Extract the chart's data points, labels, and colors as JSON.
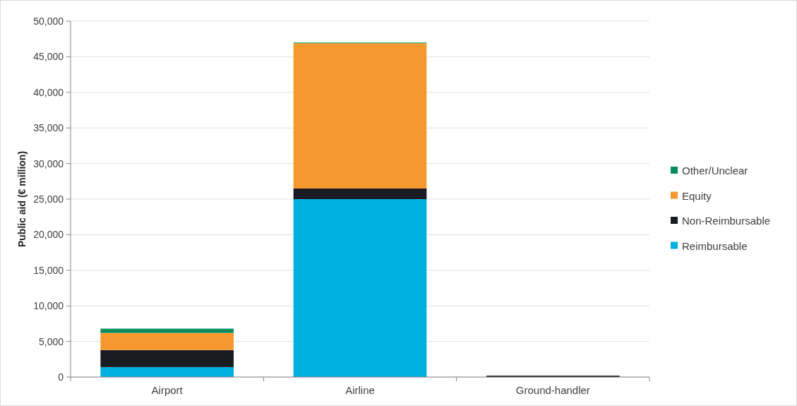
{
  "chart_data": {
    "type": "bar",
    "stacked": true,
    "ylabel": "Public aid (€ million)",
    "categories": [
      "Airport",
      "Airline",
      "Ground-handler"
    ],
    "series": [
      {
        "name": "Reimbursable",
        "color": "#00b0de",
        "values": [
          1400,
          25000,
          0
        ]
      },
      {
        "name": "Non-Reimbursable",
        "color": "#181b22",
        "values": [
          2400,
          1500,
          200
        ]
      },
      {
        "name": "Equity",
        "color": "#f7982e",
        "values": [
          2400,
          20400,
          0
        ]
      },
      {
        "name": "Other/Unclear",
        "color": "#078c5d",
        "values": [
          600,
          100,
          0
        ]
      }
    ],
    "ylim": [
      0,
      50000
    ],
    "yticks": [
      {
        "value": 0,
        "label": "0"
      },
      {
        "value": 5000,
        "label": "5,000"
      },
      {
        "value": 10000,
        "label": "10,000"
      },
      {
        "value": 15000,
        "label": "15,000"
      },
      {
        "value": 20000,
        "label": "20,000"
      },
      {
        "value": 25000,
        "label": "25,000"
      },
      {
        "value": 30000,
        "label": "30,000"
      },
      {
        "value": 35000,
        "label": "35,000"
      },
      {
        "value": 40000,
        "label": "40,000"
      },
      {
        "value": 45000,
        "label": "45,000"
      },
      {
        "value": 50000,
        "label": "50,000"
      }
    ],
    "grid": "y",
    "legend": "right"
  }
}
